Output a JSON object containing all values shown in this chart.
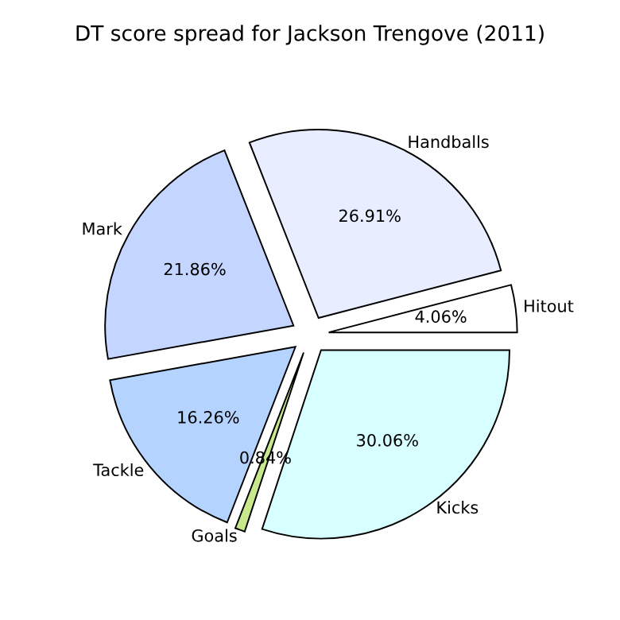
{
  "chart_data": {
    "type": "pie",
    "title": "DT score spread for Jackson Trengove (2011)",
    "categories": [
      "Hitout",
      "Handballs",
      "Mark",
      "Tackle",
      "Goals",
      "Kicks"
    ],
    "values": [
      4.06,
      26.91,
      21.86,
      16.26,
      0.84,
      30.06
    ],
    "value_labels": [
      "4.06%",
      "26.91%",
      "21.86%",
      "16.26%",
      "0.84%",
      "30.06%"
    ],
    "colors": [
      "#ffffff",
      "#e8eeff",
      "#c4d6ff",
      "#b4d4ff",
      "#c8e88c",
      "#d8ffff"
    ],
    "legend": false
  }
}
